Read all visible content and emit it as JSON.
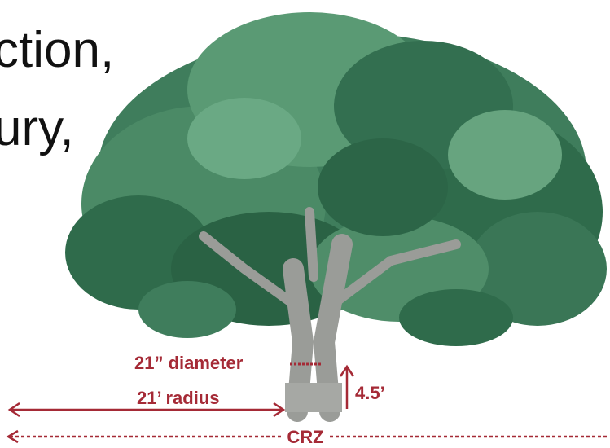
{
  "slide_text": {
    "line_1": "ction,",
    "line_2": "ury,"
  },
  "diagram": {
    "diameter_label": "21” diameter",
    "radius_label": "21’ radius",
    "height_label": "4.5’",
    "zone_label": "CRZ"
  }
}
